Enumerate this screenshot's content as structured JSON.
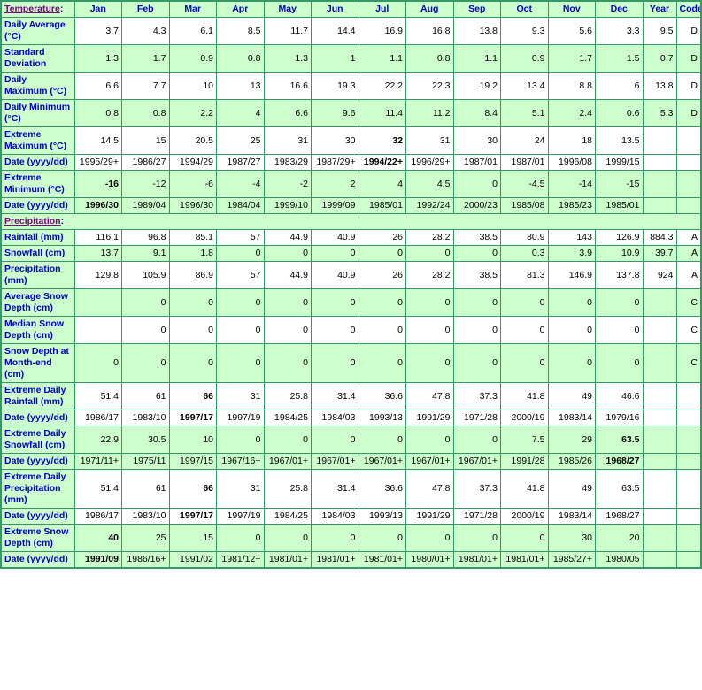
{
  "table": {
    "corner": {
      "label": "Temperature",
      "colon": ":"
    },
    "months": [
      "Jan",
      "Feb",
      "Mar",
      "Apr",
      "May",
      "Jun",
      "Jul",
      "Aug",
      "Sep",
      "Oct",
      "Nov",
      "Dec"
    ],
    "year_header": "Year",
    "code_header": "Code",
    "colors": {
      "cell_green": "#ccffcc",
      "border_green": "#339966",
      "label_blue": "#0000cc",
      "section_purple": "#800080",
      "colon_navy": "#000080",
      "data_black": "#000000",
      "white": "#ffffff"
    },
    "rows": [
      {
        "label": "Daily Average (°C)",
        "values": [
          "3.7",
          "4.3",
          "6.1",
          "8.5",
          "11.7",
          "14.4",
          "16.9",
          "16.8",
          "13.8",
          "9.3",
          "5.6",
          "3.3"
        ],
        "year": "9.5",
        "code": "D",
        "shade": false,
        "bold": []
      },
      {
        "label": "Standard Deviation",
        "values": [
          "1.3",
          "1.7",
          "0.9",
          "0.8",
          "1.3",
          "1",
          "1.1",
          "0.8",
          "1.1",
          "0.9",
          "1.7",
          "1.5"
        ],
        "year": "0.7",
        "code": "D",
        "shade": true,
        "bold": []
      },
      {
        "label": "Daily Maximum (°C)",
        "values": [
          "6.6",
          "7.7",
          "10",
          "13",
          "16.6",
          "19.3",
          "22.2",
          "22.3",
          "19.2",
          "13.4",
          "8.8",
          "6"
        ],
        "year": "13.8",
        "code": "D",
        "shade": false,
        "bold": []
      },
      {
        "label": "Daily Minimum (°C)",
        "values": [
          "0.8",
          "0.8",
          "2.2",
          "4",
          "6.6",
          "9.6",
          "11.4",
          "11.2",
          "8.4",
          "5.1",
          "2.4",
          "0.6"
        ],
        "year": "5.3",
        "code": "D",
        "shade": true,
        "bold": []
      },
      {
        "label": "Extreme Maximum (°C)",
        "values": [
          "14.5",
          "15",
          "20.5",
          "25",
          "31",
          "30",
          "32",
          "31",
          "30",
          "24",
          "18",
          "13.5"
        ],
        "year": "",
        "code": "",
        "shade": false,
        "bold": [
          6
        ]
      },
      {
        "label": "Date (yyyy/dd)",
        "values": [
          "1995/29+",
          "1986/27",
          "1994/29",
          "1987/27",
          "1983/29",
          "1987/29+",
          "1994/22+",
          "1996/29+",
          "1987/01",
          "1987/01",
          "1996/08",
          "1999/15"
        ],
        "year": "",
        "code": "",
        "shade": false,
        "bold": [
          6
        ]
      },
      {
        "label": "Extreme Minimum (°C)",
        "values": [
          "-16",
          "-12",
          "-6",
          "-4",
          "-2",
          "2",
          "4",
          "4.5",
          "0",
          "-4.5",
          "-14",
          "-15"
        ],
        "year": "",
        "code": "",
        "shade": true,
        "bold": [
          0
        ]
      },
      {
        "label": "Date (yyyy/dd)",
        "values": [
          "1996/30",
          "1989/04",
          "1996/30",
          "1984/04",
          "1999/10",
          "1999/09",
          "1985/01",
          "1992/24",
          "2000/23",
          "1985/08",
          "1985/23",
          "1985/01"
        ],
        "year": "",
        "code": "",
        "shade": true,
        "bold": [
          0
        ]
      },
      {
        "section": true,
        "label": "Precipitation",
        "colon": ":"
      },
      {
        "label": "Rainfall (mm)",
        "values": [
          "116.1",
          "96.8",
          "85.1",
          "57",
          "44.9",
          "40.9",
          "26",
          "28.2",
          "38.5",
          "80.9",
          "143",
          "126.9"
        ],
        "year": "884.3",
        "code": "A",
        "shade": false,
        "bold": []
      },
      {
        "label": "Snowfall (cm)",
        "values": [
          "13.7",
          "9.1",
          "1.8",
          "0",
          "0",
          "0",
          "0",
          "0",
          "0",
          "0.3",
          "3.9",
          "10.9"
        ],
        "year": "39.7",
        "code": "A",
        "shade": true,
        "bold": []
      },
      {
        "label": "Precipitation (mm)",
        "values": [
          "129.8",
          "105.9",
          "86.9",
          "57",
          "44.9",
          "40.9",
          "26",
          "28.2",
          "38.5",
          "81.3",
          "146.9",
          "137.8"
        ],
        "year": "924",
        "code": "A",
        "shade": false,
        "bold": []
      },
      {
        "label": "Average Snow Depth (cm)",
        "values": [
          "",
          "0",
          "0",
          "0",
          "0",
          "0",
          "0",
          "0",
          "0",
          "0",
          "0",
          "0"
        ],
        "year": "",
        "code": "C",
        "shade": true,
        "bold": []
      },
      {
        "label": "Median Snow Depth (cm)",
        "values": [
          "",
          "0",
          "0",
          "0",
          "0",
          "0",
          "0",
          "0",
          "0",
          "0",
          "0",
          "0"
        ],
        "year": "",
        "code": "C",
        "shade": false,
        "bold": []
      },
      {
        "label": "Snow Depth at Month-end (cm)",
        "values": [
          "0",
          "0",
          "0",
          "0",
          "0",
          "0",
          "0",
          "0",
          "0",
          "0",
          "0",
          "0"
        ],
        "year": "",
        "code": "C",
        "shade": true,
        "bold": []
      },
      {
        "label": "Extreme Daily Rainfall (mm)",
        "values": [
          "51.4",
          "61",
          "66",
          "31",
          "25.8",
          "31.4",
          "36.6",
          "47.8",
          "37.3",
          "41.8",
          "49",
          "46.6"
        ],
        "year": "",
        "code": "",
        "shade": false,
        "bold": [
          2
        ]
      },
      {
        "label": "Date (yyyy/dd)",
        "values": [
          "1986/17",
          "1983/10",
          "1997/17",
          "1997/19",
          "1984/25",
          "1984/03",
          "1993/13",
          "1991/29",
          "1971/28",
          "2000/19",
          "1983/14",
          "1979/16"
        ],
        "year": "",
        "code": "",
        "shade": false,
        "bold": [
          2
        ]
      },
      {
        "label": "Extreme Daily Snowfall (cm)",
        "values": [
          "22.9",
          "30.5",
          "10",
          "0",
          "0",
          "0",
          "0",
          "0",
          "0",
          "7.5",
          "29",
          "63.5"
        ],
        "year": "",
        "code": "",
        "shade": true,
        "bold": [
          11
        ]
      },
      {
        "label": "Date (yyyy/dd)",
        "values": [
          "1971/11+",
          "1975/11",
          "1997/15",
          "1967/16+",
          "1967/01+",
          "1967/01+",
          "1967/01+",
          "1967/01+",
          "1967/01+",
          "1991/28",
          "1985/26",
          "1968/27"
        ],
        "year": "",
        "code": "",
        "shade": true,
        "bold": [
          11
        ]
      },
      {
        "label": "Extreme Daily Precipitation (mm)",
        "values": [
          "51.4",
          "61",
          "66",
          "31",
          "25.8",
          "31.4",
          "36.6",
          "47.8",
          "37.3",
          "41.8",
          "49",
          "63.5"
        ],
        "year": "",
        "code": "",
        "shade": false,
        "bold": [
          2
        ]
      },
      {
        "label": "Date (yyyy/dd)",
        "values": [
          "1986/17",
          "1983/10",
          "1997/17",
          "1997/19",
          "1984/25",
          "1984/03",
          "1993/13",
          "1991/29",
          "1971/28",
          "2000/19",
          "1983/14",
          "1968/27"
        ],
        "year": "",
        "code": "",
        "shade": false,
        "bold": [
          2
        ]
      },
      {
        "label": "Extreme Snow Depth (cm)",
        "values": [
          "40",
          "25",
          "15",
          "0",
          "0",
          "0",
          "0",
          "0",
          "0",
          "0",
          "30",
          "20"
        ],
        "year": "",
        "code": "",
        "shade": true,
        "bold": [
          0
        ]
      },
      {
        "label": "Date (yyyy/dd)",
        "values": [
          "1991/09",
          "1986/16+",
          "1991/02",
          "1981/12+",
          "1981/01+",
          "1981/01+",
          "1981/01+",
          "1980/01+",
          "1981/01+",
          "1981/01+",
          "1985/27+",
          "1980/05"
        ],
        "year": "",
        "code": "",
        "shade": true,
        "bold": [
          0
        ]
      }
    ]
  }
}
